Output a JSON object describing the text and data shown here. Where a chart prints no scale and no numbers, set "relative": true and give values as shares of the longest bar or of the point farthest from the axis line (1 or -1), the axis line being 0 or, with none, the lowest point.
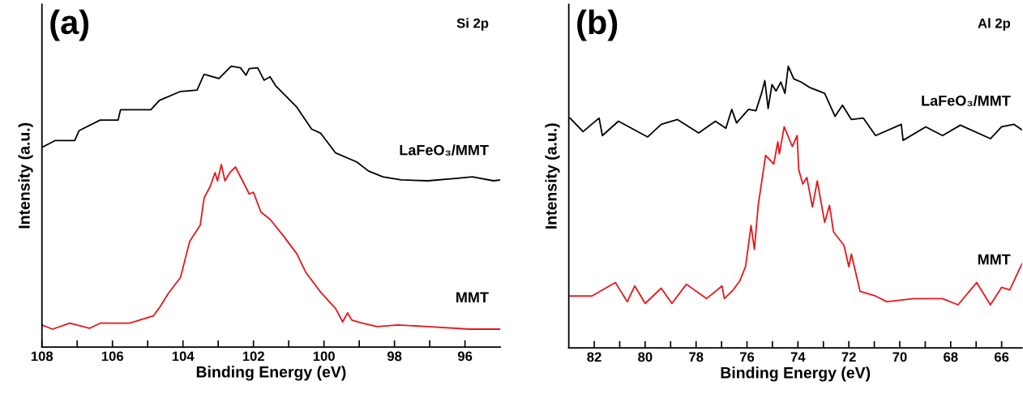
{
  "chart_data": [
    {
      "type": "line",
      "relative": true,
      "annotations": [
        "(a)",
        "Si 2p"
      ],
      "xlabel": "Binding Energy (eV)",
      "ylabel": "Intensity (a.u.)",
      "xlim": [
        108,
        95
      ],
      "xticks": [
        108,
        {
          "value": 107,
          "label": null
        },
        106,
        {
          "value": 105,
          "label": null
        },
        104,
        {
          "value": 103,
          "label": null
        },
        102,
        {
          "value": 101,
          "label": null
        },
        100,
        {
          "value": 99,
          "label": null
        },
        98,
        {
          "value": 97,
          "label": null
        },
        96
      ],
      "tick_labels": "x",
      "grid": false,
      "legend": false,
      "series": [
        {
          "name": "LaFeO₃/MMT",
          "color": "#000000",
          "x": [
            108.0,
            107.63,
            107.07,
            106.95,
            106.35,
            105.84,
            105.77,
            104.91,
            104.67,
            104.07,
            103.6,
            103.4,
            102.98,
            102.63,
            102.37,
            102.21,
            102.12,
            101.88,
            101.7,
            101.53,
            101.37,
            100.77,
            100.35,
            100.09,
            99.67,
            99.07,
            98.74,
            98.33,
            97.81,
            97.05,
            96.21,
            95.79,
            95.19,
            95.0
          ],
          "values": [
            0.711,
            0.735,
            0.735,
            0.77,
            0.808,
            0.808,
            0.845,
            0.845,
            0.878,
            0.91,
            0.915,
            0.971,
            0.956,
            1.0,
            0.994,
            0.968,
            0.991,
            0.994,
            0.95,
            0.962,
            0.93,
            0.854,
            0.776,
            0.761,
            0.691,
            0.659,
            0.627,
            0.606,
            0.595,
            0.592,
            0.601,
            0.606,
            0.592,
            0.595
          ]
        },
        {
          "name": "MMT",
          "color": "#e8161b",
          "x": [
            108.0,
            107.7,
            107.21,
            106.65,
            106.35,
            105.51,
            105.16,
            104.84,
            104.67,
            104.42,
            104.07,
            103.81,
            103.51,
            103.4,
            103.23,
            103.09,
            103.02,
            102.91,
            102.81,
            102.67,
            102.51,
            102.12,
            102.0,
            101.79,
            101.53,
            101.12,
            100.77,
            100.51,
            100.09,
            99.67,
            99.47,
            99.33,
            99.21,
            98.91,
            98.49,
            97.91,
            97.05,
            95.86,
            95.0
          ],
          "values": [
            0.079,
            0.064,
            0.085,
            0.067,
            0.085,
            0.085,
            0.099,
            0.111,
            0.14,
            0.19,
            0.248,
            0.376,
            0.434,
            0.531,
            0.571,
            0.621,
            0.592,
            0.65,
            0.592,
            0.621,
            0.641,
            0.545,
            0.551,
            0.481,
            0.455,
            0.391,
            0.332,
            0.265,
            0.195,
            0.137,
            0.09,
            0.122,
            0.096,
            0.085,
            0.073,
            0.079,
            0.073,
            0.064,
            0.064
          ]
        }
      ]
    },
    {
      "type": "line",
      "relative": true,
      "annotations": [
        "(b)",
        "Al 2p"
      ],
      "xlabel": "Binding Energy (eV)",
      "ylabel": "Intensity (a.u.)",
      "xlim": [
        83,
        65.2
      ],
      "xticks": [
        82,
        {
          "value": 81,
          "label": null
        },
        80,
        {
          "value": 79,
          "label": null
        },
        78,
        {
          "value": 77,
          "label": null
        },
        76,
        {
          "value": 75,
          "label": null
        },
        74,
        {
          "value": 73,
          "label": null
        },
        72,
        {
          "value": 71,
          "label": null
        },
        70,
        {
          "value": 69,
          "label": null
        },
        68,
        {
          "value": 67,
          "label": null
        },
        66
      ],
      "tick_labels": "x",
      "grid": false,
      "legend": false,
      "series": [
        {
          "name": "LaFeO₃/MMT",
          "color": "#000000",
          "x": [
            82.95,
            82.44,
            81.81,
            81.68,
            81.05,
            79.9,
            79.37,
            78.73,
            77.9,
            77.24,
            76.83,
            76.6,
            76.41,
            75.94,
            75.65,
            75.43,
            75.3,
            75.17,
            75.02,
            74.86,
            74.67,
            74.51,
            74.38,
            74.16,
            73.87,
            73.52,
            72.95,
            72.54,
            72.25,
            71.9,
            71.43,
            70.95,
            69.94,
            69.87,
            68.98,
            68.32,
            67.62,
            66.44,
            66.0,
            65.52,
            65.2
          ],
          "values": [
            0.816,
            0.768,
            0.816,
            0.754,
            0.805,
            0.749,
            0.794,
            0.811,
            0.763,
            0.805,
            0.78,
            0.847,
            0.799,
            0.847,
            0.842,
            0.904,
            0.949,
            0.85,
            0.935,
            0.912,
            0.944,
            0.904,
            1.0,
            0.955,
            0.944,
            0.924,
            0.904,
            0.822,
            0.862,
            0.811,
            0.816,
            0.754,
            0.794,
            0.737,
            0.785,
            0.754,
            0.791,
            0.743,
            0.785,
            0.794,
            0.774
          ]
        },
        {
          "name": "MMT",
          "color": "#e8161b",
          "x": [
            82.95,
            82.1,
            81.17,
            80.7,
            80.41,
            80.0,
            79.37,
            78.95,
            78.38,
            77.59,
            76.98,
            76.89,
            76.54,
            76.29,
            76.06,
            75.84,
            75.71,
            75.56,
            75.27,
            74.95,
            74.79,
            74.73,
            74.54,
            74.22,
            74.03,
            73.97,
            73.81,
            73.65,
            73.43,
            73.24,
            72.95,
            72.76,
            72.6,
            72.19,
            72.0,
            71.9,
            71.56,
            70.95,
            70.51,
            69.46,
            68.32,
            67.71,
            66.98,
            66.44,
            66.0,
            65.68,
            65.2
          ],
          "values": [
            0.184,
            0.184,
            0.232,
            0.164,
            0.22,
            0.158,
            0.212,
            0.158,
            0.226,
            0.175,
            0.22,
            0.175,
            0.206,
            0.237,
            0.288,
            0.435,
            0.35,
            0.506,
            0.684,
            0.653,
            0.732,
            0.689,
            0.785,
            0.715,
            0.754,
            0.633,
            0.582,
            0.605,
            0.5,
            0.593,
            0.446,
            0.506,
            0.412,
            0.364,
            0.288,
            0.333,
            0.201,
            0.184,
            0.164,
            0.175,
            0.175,
            0.153,
            0.232,
            0.153,
            0.215,
            0.206,
            0.299
          ]
        }
      ]
    }
  ]
}
